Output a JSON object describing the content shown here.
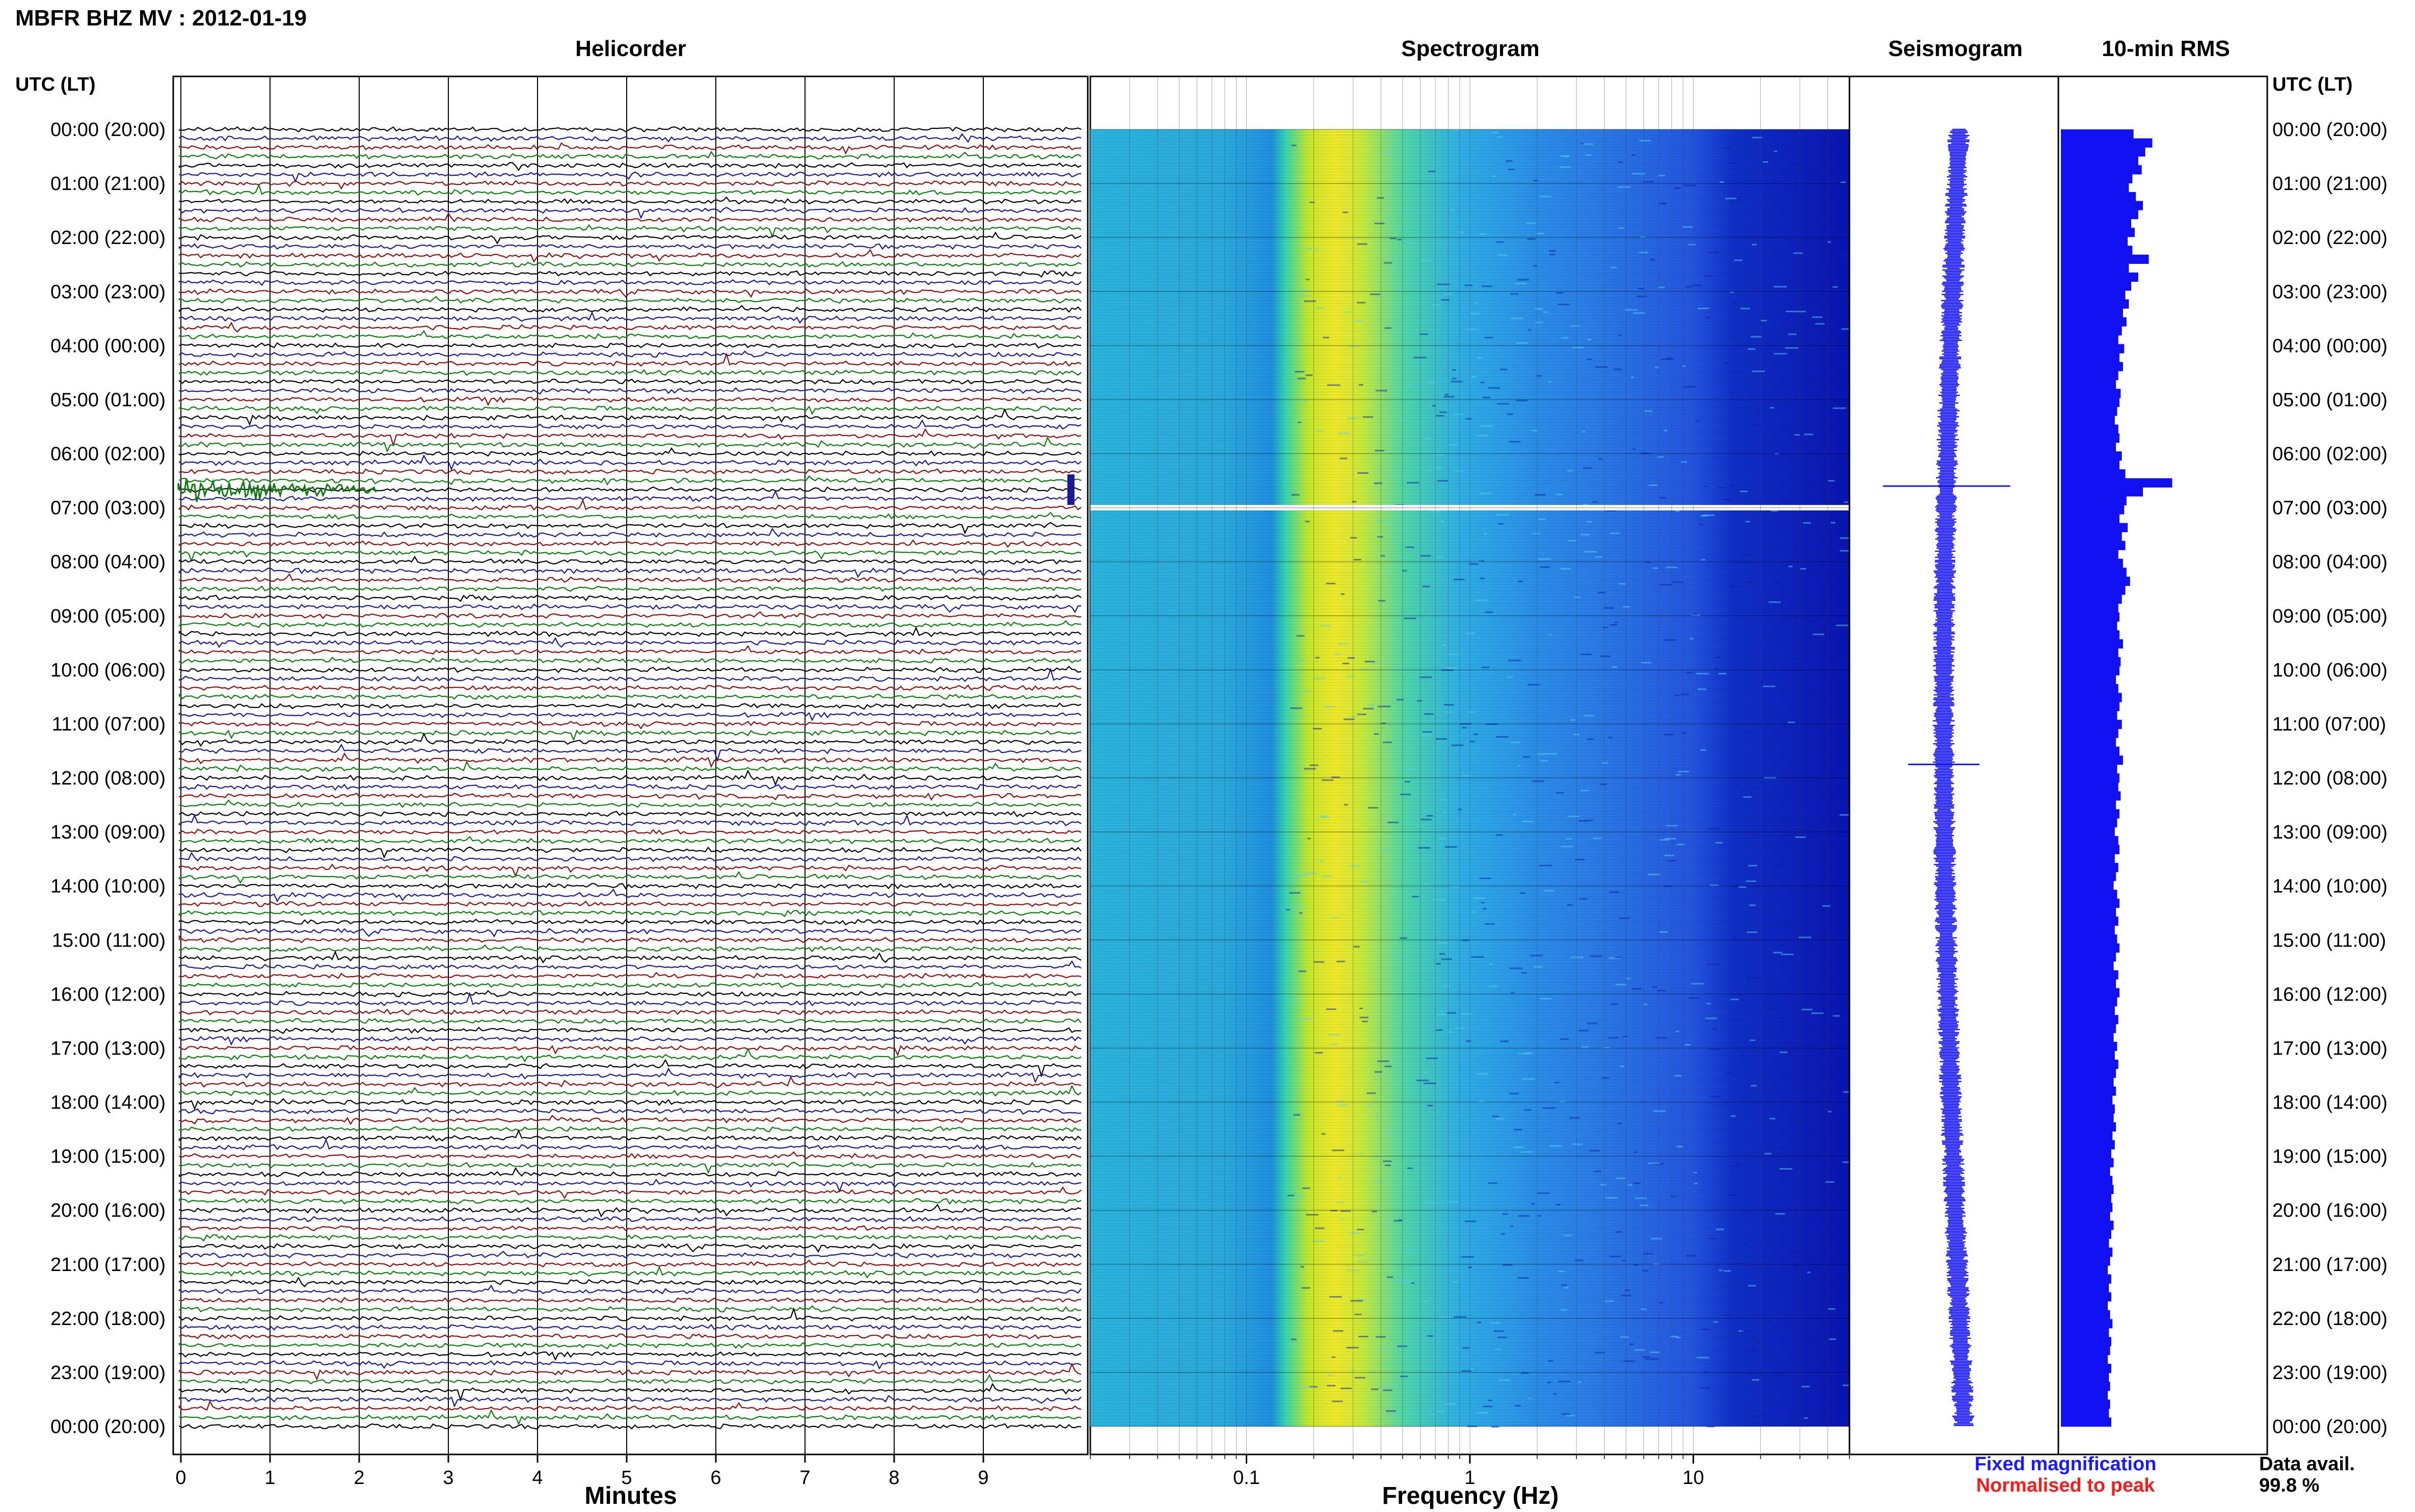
{
  "title": "MBFR BHZ MV : 2012-01-19",
  "panels": {
    "helicorder": "Helicorder",
    "spectrogram": "Spectrogram",
    "seismogram": "Seismogram",
    "rms": "10-min RMS"
  },
  "utc_header": "UTC (LT)",
  "x_labels": {
    "minutes": "Minutes",
    "frequency": "Frequency (Hz)"
  },
  "footer": {
    "fixed": "Fixed magnification",
    "normalised": "Normalised to peak",
    "data_avail_label": "Data avail.",
    "data_avail_value": "99.8 %"
  },
  "colors": {
    "fixed": "#1a1aff",
    "normalised": "#ff1a1a",
    "trace_cycle": [
      "#000000",
      "#1a1a99",
      "#8a0f0f",
      "#0f7a0f"
    ],
    "rms_fill": "#1010f0",
    "seismo": "#1a1af0"
  },
  "chart_data": [
    {
      "type": "helicorder",
      "title": "Helicorder",
      "xlabel": "Minutes",
      "x_ticks": [
        0,
        1,
        2,
        3,
        4,
        5,
        6,
        7,
        8,
        9
      ],
      "xlim": [
        0,
        10
      ],
      "row_labels": [
        "00:00 (20:00)",
        "01:00 (21:00)",
        "02:00 (22:00)",
        "03:00 (23:00)",
        "04:00 (00:00)",
        "05:00 (01:00)",
        "06:00 (02:00)",
        "07:00 (03:00)",
        "08:00 (04:00)",
        "09:00 (05:00)",
        "10:00 (06:00)",
        "11:00 (07:00)",
        "12:00 (08:00)",
        "13:00 (09:00)",
        "14:00 (10:00)",
        "15:00 (11:00)",
        "16:00 (12:00)",
        "17:00 (13:00)",
        "18:00 (14:00)",
        "19:00 (15:00)",
        "20:00 (16:00)",
        "21:00 (17:00)",
        "22:00 (18:00)",
        "23:00 (19:00)",
        "00:00 (20:00)"
      ],
      "traces_per_hour": 6
    },
    {
      "type": "heatmap",
      "title": "Spectrogram",
      "xlabel": "Frequency (Hz)",
      "x_scale": "log",
      "xlim": [
        0.02,
        50
      ],
      "x_ticks": [
        0.1,
        1,
        10
      ],
      "x_tick_labels": [
        "0.1",
        "1",
        "10"
      ],
      "peak_frequency_hz": 0.25,
      "gap_hours_utc": [
        6.95,
        7.05
      ]
    },
    {
      "type": "line",
      "title": "Seismogram",
      "events_utc_hours": [
        6.6,
        11.75
      ]
    },
    {
      "type": "bar",
      "title": "10-min RMS",
      "orientation": "horizontal",
      "interval_minutes": 10,
      "values_relative": [
        0.62,
        0.78,
        0.72,
        0.66,
        0.69,
        0.61,
        0.58,
        0.64,
        0.7,
        0.66,
        0.6,
        0.63,
        0.57,
        0.61,
        0.75,
        0.58,
        0.66,
        0.6,
        0.55,
        0.58,
        0.53,
        0.56,
        0.52,
        0.49,
        0.54,
        0.5,
        0.53,
        0.49,
        0.47,
        0.51,
        0.5,
        0.48,
        0.46,
        0.49,
        0.5,
        0.47,
        0.52,
        0.5,
        0.55,
        0.95,
        0.7,
        0.56,
        0.54,
        0.5,
        0.57,
        0.52,
        0.55,
        0.49,
        0.53,
        0.56,
        0.59,
        0.55,
        0.52,
        0.49,
        0.5,
        0.48,
        0.5,
        0.53,
        0.49,
        0.51,
        0.5,
        0.47,
        0.49,
        0.52,
        0.5,
        0.48,
        0.52,
        0.49,
        0.47,
        0.5,
        0.53,
        0.48,
        0.5,
        0.49,
        0.51,
        0.47,
        0.5,
        0.48,
        0.46,
        0.49,
        0.5,
        0.46,
        0.49,
        0.47,
        0.45,
        0.48,
        0.5,
        0.47,
        0.49,
        0.46,
        0.48,
        0.5,
        0.47,
        0.45,
        0.49,
        0.47,
        0.5,
        0.48,
        0.46,
        0.49,
        0.47,
        0.45,
        0.48,
        0.46,
        0.49,
        0.47,
        0.45,
        0.47,
        0.44,
        0.46,
        0.45,
        0.47,
        0.44,
        0.46,
        0.43,
        0.45,
        0.42,
        0.44,
        0.45,
        0.43,
        0.44,
        0.42,
        0.45,
        0.43,
        0.41,
        0.44,
        0.42,
        0.4,
        0.43,
        0.41,
        0.43,
        0.4,
        0.42,
        0.44,
        0.41,
        0.43,
        0.42,
        0.4,
        0.43,
        0.41,
        0.42,
        0.4,
        0.42,
        0.41,
        0.43
      ]
    }
  ]
}
